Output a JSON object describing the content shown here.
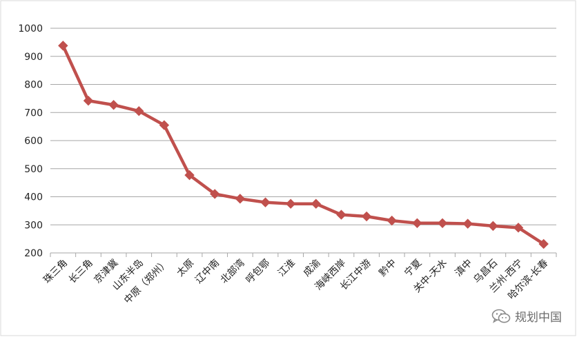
{
  "chart_data": {
    "type": "line",
    "categories": [
      "珠三角",
      "长三角",
      "京津冀",
      "山东半岛",
      "中原（郑州）",
      "太原",
      "辽中南",
      "北部湾",
      "呼包鄂",
      "江淮",
      "成渝",
      "海峡西岸",
      "长江中游",
      "黔中",
      "宁夏",
      "关中-天水",
      "滇中",
      "乌昌石",
      "兰州-西宁",
      "哈尔滨-长春"
    ],
    "series": [
      {
        "values": [
          938,
          742,
          727,
          705,
          655,
          477,
          410,
          393,
          380,
          375,
          375,
          336,
          330,
          315,
          306,
          306,
          304,
          296,
          290,
          232
        ]
      }
    ],
    "ylim": [
      200,
      1000
    ],
    "yticks": [
      200,
      300,
      400,
      500,
      600,
      700,
      800,
      900,
      1000
    ],
    "grid": true,
    "legend": "none",
    "colors": {
      "line": "#c0504d",
      "marker": "#c0504d",
      "grid": "#a6a6a6"
    }
  },
  "watermark": {
    "text": "规划中国",
    "icon": "wechat-icon"
  }
}
